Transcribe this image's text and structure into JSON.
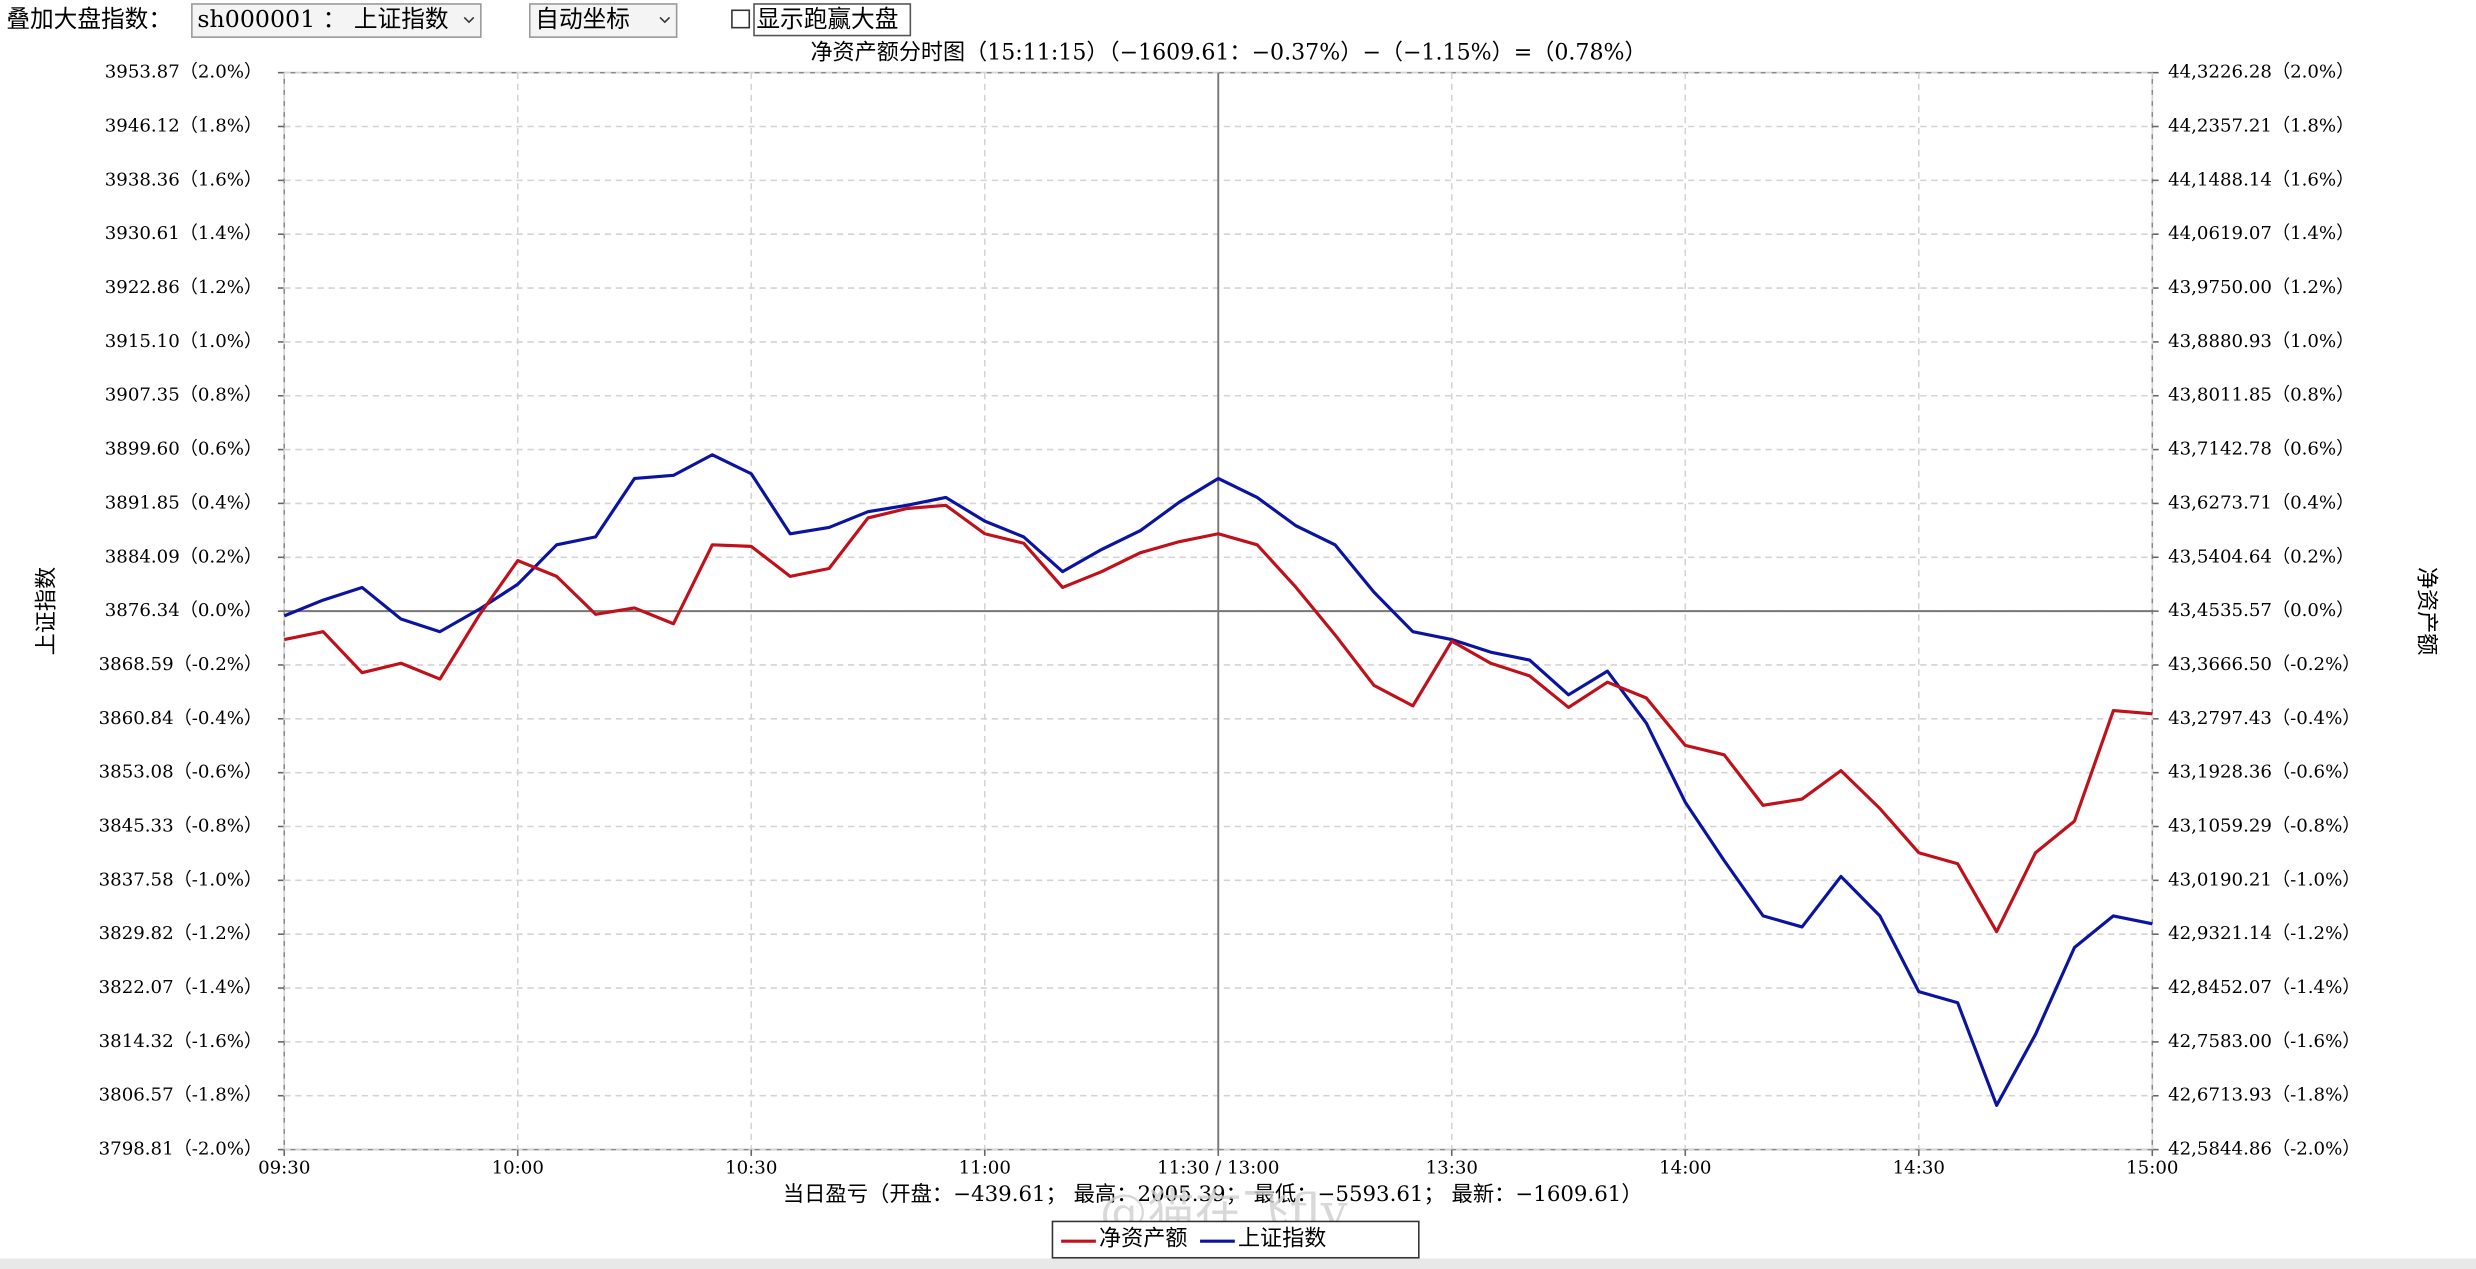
{
  "controls": {
    "overlay_label": "叠加大盘指数：",
    "index_select": "sh000001 ： 上证指数",
    "axis_select": "自动坐标",
    "outperform_checkbox": "显示跑赢大盘"
  },
  "watermark": "@猫在飞fly",
  "chart_data": {
    "type": "line",
    "title": "净资产额分时图（15:11:15）（−1609.61：−0.37%）−（−1.15%）=（0.78%）",
    "ylabel": "上证指数",
    "y2label": "净资产额",
    "footer": "当日盈亏（开盘：−439.61；  最高：2005.39；  最低：−5593.61；  最新：−1609.61）",
    "x": [
      0,
      5,
      10,
      15,
      20,
      25,
      30,
      35,
      40,
      45,
      50,
      55,
      60,
      65,
      70,
      75,
      80,
      85,
      90,
      95,
      100,
      105,
      110,
      115,
      120,
      125,
      130,
      135,
      140,
      145,
      150,
      155,
      160,
      165,
      170,
      175,
      180,
      185,
      190,
      195,
      200,
      205,
      210,
      215,
      220,
      225,
      230,
      235,
      240
    ],
    "xlim": [
      0,
      240
    ],
    "xticks": [
      {
        "value": 0,
        "label": "09:30"
      },
      {
        "value": 30,
        "label": "10:00"
      },
      {
        "value": 60,
        "label": "10:30"
      },
      {
        "value": 90,
        "label": "11:00"
      },
      {
        "value": 120,
        "label": "11:30 / 13:00"
      },
      {
        "value": 150,
        "label": "13:30"
      },
      {
        "value": 180,
        "label": "14:00"
      },
      {
        "value": 210,
        "label": "14:30"
      },
      {
        "value": 240,
        "label": "15:00"
      }
    ],
    "ylim": [
      3798.81,
      3953.87
    ],
    "yticks": [
      {
        "value": 3953.87,
        "label": "3953.87（2.0%）"
      },
      {
        "value": 3946.12,
        "label": "3946.12（1.8%）"
      },
      {
        "value": 3938.36,
        "label": "3938.36（1.6%）"
      },
      {
        "value": 3930.61,
        "label": "3930.61（1.4%）"
      },
      {
        "value": 3922.86,
        "label": "3922.86（1.2%）"
      },
      {
        "value": 3915.1,
        "label": "3915.10（1.0%）"
      },
      {
        "value": 3907.35,
        "label": "3907.35（0.8%）"
      },
      {
        "value": 3899.6,
        "label": "3899.60（0.6%）"
      },
      {
        "value": 3891.85,
        "label": "3891.85（0.4%）"
      },
      {
        "value": 3884.09,
        "label": "3884.09（0.2%）"
      },
      {
        "value": 3876.34,
        "label": "3876.34（0.0%）"
      },
      {
        "value": 3868.59,
        "label": "3868.59（-0.2%）"
      },
      {
        "value": 3860.84,
        "label": "3860.84（-0.4%）"
      },
      {
        "value": 3853.08,
        "label": "3853.08（-0.6%）"
      },
      {
        "value": 3845.33,
        "label": "3845.33（-0.8%）"
      },
      {
        "value": 3837.58,
        "label": "3837.58（-1.0%）"
      },
      {
        "value": 3829.82,
        "label": "3829.82（-1.2%）"
      },
      {
        "value": 3822.07,
        "label": "3822.07（-1.4%）"
      },
      {
        "value": 3814.32,
        "label": "3814.32（-1.6%）"
      },
      {
        "value": 3806.57,
        "label": "3806.57（-1.8%）"
      },
      {
        "value": 3798.81,
        "label": "3798.81（-2.0%）"
      }
    ],
    "y2lim": [
      425844.86,
      443226.28
    ],
    "y2ticks": [
      {
        "value": 443226.28,
        "label": "44,3226.28（2.0%）"
      },
      {
        "value": 442357.21,
        "label": "44,2357.21（1.8%）"
      },
      {
        "value": 441488.14,
        "label": "44,1488.14（1.6%）"
      },
      {
        "value": 440619.07,
        "label": "44,0619.07（1.4%）"
      },
      {
        "value": 439750.0,
        "label": "43,9750.00（1.2%）"
      },
      {
        "value": 438880.93,
        "label": "43,8880.93（1.0%）"
      },
      {
        "value": 438011.85,
        "label": "43,8011.85（0.8%）"
      },
      {
        "value": 437142.78,
        "label": "43,7142.78（0.6%）"
      },
      {
        "value": 436273.71,
        "label": "43,6273.71（0.4%）"
      },
      {
        "value": 435404.64,
        "label": "43,5404.64（0.2%）"
      },
      {
        "value": 434535.57,
        "label": "43,4535.57（0.0%）"
      },
      {
        "value": 433666.5,
        "label": "43,3666.50（-0.2%）"
      },
      {
        "value": 432797.43,
        "label": "43,2797.43（-0.4%）"
      },
      {
        "value": 431928.36,
        "label": "43,1928.36（-0.6%）"
      },
      {
        "value": 431059.29,
        "label": "43,1059.29（-0.8%）"
      },
      {
        "value": 430190.21,
        "label": "43,0190.21（-1.0%）"
      },
      {
        "value": 429321.14,
        "label": "42,9321.14（-1.2%）"
      },
      {
        "value": 428452.07,
        "label": "42,8452.07（-1.4%）"
      },
      {
        "value": 427583.0,
        "label": "42,7583.00（-1.6%）"
      },
      {
        "value": 426713.93,
        "label": "42,6713.93（-1.8%）"
      },
      {
        "value": 425844.86,
        "label": "42,5844.86（-2.0%）"
      }
    ],
    "grid": true,
    "legend": "bottom",
    "series": [
      {
        "name": "净资产额",
        "color": "#c0101a",
        "axis": "y2",
        "values": [
          434076.82,
          434204.25,
          433541.62,
          433694.53,
          433439.67,
          434459.11,
          435351.12,
          435096.26,
          434484.6,
          434586.54,
          434331.68,
          435605.98,
          435580.5,
          435096.26,
          435223.69,
          436039.24,
          436192.16,
          436243.13,
          435784.38,
          435631.47,
          434917.86,
          435172.72,
          435478.55,
          435656.95,
          435784.38,
          435605.98,
          434917.86,
          434153.28,
          433337.73,
          433006.41,
          434051.34,
          433694.53,
          433490.64,
          432980.92,
          433388.7,
          433133.84,
          432369.26,
          432216.34,
          431400.79,
          431502.74,
          431961.48,
          431349.82,
          430636.21,
          430457.81,
          429361.91,
          430636.21,
          431146.13,
          432930.0,
          432878.98
        ]
      },
      {
        "name": "上证指数",
        "color": "#0a14a0",
        "values": [
          3875.66,
          3877.93,
          3879.75,
          3875.2,
          3873.38,
          3876.57,
          3880.21,
          3885.89,
          3887.03,
          3895.44,
          3895.89,
          3898.85,
          3896.12,
          3887.48,
          3888.39,
          3890.66,
          3891.57,
          3892.71,
          3889.3,
          3887.03,
          3882.02,
          3885.21,
          3887.94,
          3892.03,
          3895.44,
          3892.71,
          3888.62,
          3885.89,
          3879.07,
          3873.38,
          3872.25,
          3870.43,
          3869.29,
          3864.29,
          3867.7,
          3860.2,
          3848.83,
          3840.42,
          3832.46,
          3830.87,
          3838.14,
          3832.46,
          3821.55,
          3819.95,
          3805.18,
          3815.41,
          3827.91,
          3832.46,
          3831.32
        ]
      }
    ]
  }
}
